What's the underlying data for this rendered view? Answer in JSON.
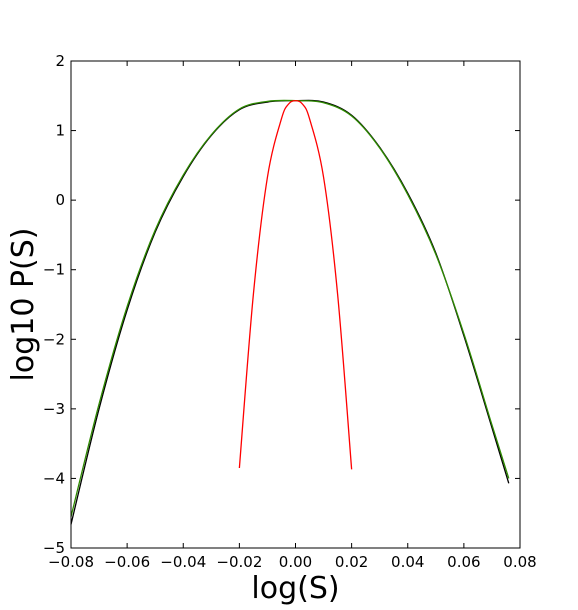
{
  "chart_data": {
    "type": "line",
    "title": "",
    "xlabel": "log(S)",
    "ylabel": "log10 P(S)",
    "xlim": [
      -0.08,
      0.08
    ],
    "ylim": [
      -5,
      2
    ],
    "xticks": [
      -0.08,
      -0.06,
      -0.04,
      -0.02,
      0.0,
      0.02,
      0.04,
      0.06,
      0.08
    ],
    "xtick_labels": [
      "−0.08",
      "−0.06",
      "−0.04",
      "−0.02",
      "0.00",
      "0.02",
      "0.04",
      "0.06",
      "0.08"
    ],
    "yticks": [
      -5,
      -4,
      -3,
      -2,
      -1,
      0,
      1,
      2
    ],
    "ytick_labels": [
      "−5",
      "−4",
      "−3",
      "−2",
      "−1",
      "0",
      "1",
      "2"
    ],
    "grid": false,
    "legend": "none",
    "series": [
      {
        "color": "#000000",
        "x": [
          -0.08,
          -0.07,
          -0.06,
          -0.05,
          -0.04,
          -0.03,
          -0.02,
          -0.01,
          0.0,
          0.01,
          0.02,
          0.03,
          0.04,
          0.05,
          0.06,
          0.07,
          0.076
        ],
        "y": [
          -4.66,
          -3.0,
          -1.58,
          -0.46,
          0.34,
          0.93,
          1.3,
          1.41,
          1.43,
          1.41,
          1.22,
          0.76,
          0.1,
          -0.76,
          -1.95,
          -3.27,
          -4.07
        ]
      },
      {
        "color": "#2e8b00",
        "x": [
          -0.08,
          -0.07,
          -0.06,
          -0.05,
          -0.04,
          -0.03,
          -0.02,
          -0.01,
          0.0,
          0.01,
          0.02,
          0.03,
          0.04,
          0.05,
          0.06,
          0.07,
          0.076
        ],
        "y": [
          -4.55,
          -2.93,
          -1.53,
          -0.43,
          0.36,
          0.94,
          1.31,
          1.42,
          1.43,
          1.4,
          1.21,
          0.75,
          0.08,
          -0.78,
          -1.92,
          -3.23,
          -4.0
        ]
      },
      {
        "color": "#ff0000",
        "x": [
          -0.02,
          -0.015,
          -0.01,
          -0.005,
          -0.0025,
          0.0,
          0.0025,
          0.005,
          0.01,
          0.015,
          0.02
        ],
        "y": [
          -3.85,
          -1.35,
          0.33,
          1.17,
          1.38,
          1.43,
          1.38,
          1.17,
          0.33,
          -1.35,
          -3.87
        ]
      }
    ]
  }
}
